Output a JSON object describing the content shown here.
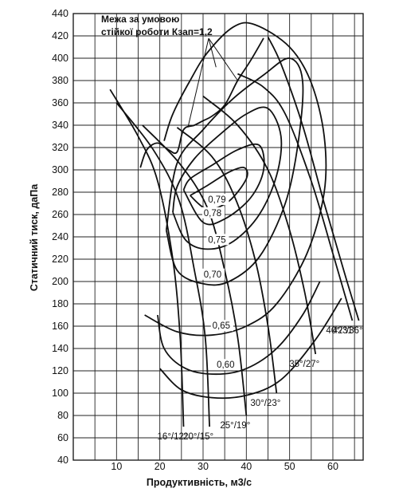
{
  "chart_data": {
    "type": "line",
    "xlabel": "Продуктивність, м3/с",
    "ylabel": "Статичний тиск, даПа",
    "xlim": [
      0,
      67
    ],
    "ylim": [
      40,
      440
    ],
    "x_ticks": [
      10,
      20,
      30,
      40,
      50,
      60
    ],
    "y_ticks": [
      40,
      60,
      80,
      100,
      120,
      140,
      160,
      180,
      200,
      220,
      240,
      260,
      280,
      300,
      320,
      340,
      360,
      380,
      400,
      420,
      440
    ],
    "grid": true,
    "annotation": {
      "lines": [
        "Межа за умовою",
        "стійкої роботи Кзап=1,2"
      ]
    },
    "blade_angle_curves": [
      {
        "name": "16°/12°",
        "points": [
          [
            8.5,
            372
          ],
          [
            15,
            330
          ],
          [
            19.5,
            290
          ],
          [
            23,
            220
          ],
          [
            24.7,
            150
          ],
          [
            25.5,
            70
          ]
        ]
      },
      {
        "name": "20°/15°",
        "points": [
          [
            10,
            360
          ],
          [
            18.5,
            318
          ],
          [
            24.5,
            272
          ],
          [
            28,
            210
          ],
          [
            30.5,
            150
          ],
          [
            31.5,
            70
          ]
        ]
      },
      {
        "name": "25°/19°",
        "points": [
          [
            16,
            340
          ],
          [
            24.5,
            306
          ],
          [
            31,
            266
          ],
          [
            35,
            210
          ],
          [
            38,
            150
          ],
          [
            40,
            80
          ]
        ]
      },
      {
        "name": "30°/23°",
        "points": [
          [
            24,
            338
          ],
          [
            32,
            312
          ],
          [
            37.5,
            274
          ],
          [
            42,
            220
          ],
          [
            45,
            160
          ],
          [
            47,
            100
          ]
        ]
      },
      {
        "name": "35°/27°",
        "points": [
          [
            30,
            366
          ],
          [
            38,
            340
          ],
          [
            45,
            300
          ],
          [
            50,
            246
          ],
          [
            53.5,
            190
          ],
          [
            56,
            135
          ]
        ]
      },
      {
        "name": "40°/31°",
        "points": [
          [
            38,
            386
          ],
          [
            44,
            374
          ],
          [
            49,
            350
          ],
          [
            55,
            290
          ],
          [
            60,
            225
          ],
          [
            64.5,
            165
          ]
        ]
      },
      {
        "name": "42°/36°",
        "points": [
          [
            45,
            419
          ],
          [
            48,
            395
          ],
          [
            53,
            340
          ],
          [
            58,
            270
          ],
          [
            62.5,
            210
          ],
          [
            66,
            165
          ]
        ]
      }
    ],
    "efficiency_curves": [
      {
        "label": "0,79",
        "points": [
          [
            27,
            277
          ],
          [
            31,
            265
          ],
          [
            36,
            272
          ],
          [
            40,
            292
          ],
          [
            39.5,
            302
          ],
          [
            36,
            298
          ],
          [
            31,
            286
          ],
          [
            27,
            277
          ]
        ]
      },
      {
        "label": "0,78",
        "points": [
          [
            25.5,
            282
          ],
          [
            30,
            253
          ],
          [
            35,
            256
          ],
          [
            41,
            275
          ],
          [
            44,
            300
          ],
          [
            43,
            322
          ],
          [
            38,
            318
          ],
          [
            32,
            304
          ],
          [
            27,
            292
          ],
          [
            25.5,
            282
          ]
        ]
      },
      {
        "label": "0,75",
        "points": [
          [
            23,
            262
          ],
          [
            26,
            237
          ],
          [
            31,
            229
          ],
          [
            37,
            236
          ],
          [
            43,
            260
          ],
          [
            47,
            295
          ],
          [
            48,
            330
          ],
          [
            45,
            355
          ],
          [
            40,
            350
          ],
          [
            34,
            332
          ],
          [
            28,
            310
          ],
          [
            24,
            285
          ],
          [
            23,
            262
          ]
        ]
      },
      {
        "label": "0,70",
        "points": [
          [
            21.5,
            246
          ],
          [
            24,
            210
          ],
          [
            30,
            198
          ],
          [
            36,
            200
          ],
          [
            43,
            222
          ],
          [
            49,
            270
          ],
          [
            52,
            325
          ],
          [
            53,
            380
          ],
          [
            50,
            400
          ],
          [
            44,
            385
          ],
          [
            37,
            364
          ],
          [
            30,
            336
          ],
          [
            24,
            306
          ],
          [
            21.5,
            246
          ]
        ]
      },
      {
        "label": "0,65",
        "points": [
          [
            16.5,
            170
          ],
          [
            24,
            155
          ],
          [
            32,
            152
          ],
          [
            40,
            160
          ],
          [
            47,
            180
          ],
          [
            54,
            225
          ],
          [
            58,
            280
          ],
          [
            58,
            330
          ],
          [
            55,
            378
          ],
          [
            50,
            410
          ],
          [
            42,
            430
          ],
          [
            37,
            428
          ],
          [
            31,
            405
          ],
          [
            27,
            380
          ],
          [
            23,
            350
          ],
          [
            21,
            326
          ]
        ]
      },
      {
        "label": "0,60",
        "points": [
          [
            19.5,
            170
          ],
          [
            21,
            140
          ],
          [
            26,
            122
          ],
          [
            33,
            117
          ],
          [
            40,
            122
          ],
          [
            47,
            140
          ],
          [
            53,
            170
          ],
          [
            57,
            200
          ]
        ]
      },
      {
        "label": "",
        "points": [
          [
            20,
            122
          ],
          [
            25,
            103
          ],
          [
            32,
            96
          ],
          [
            40,
            98
          ],
          [
            48,
            112
          ],
          [
            56,
            148
          ],
          [
            62,
            185
          ]
        ]
      }
    ],
    "stability_boundary": [
      [
        15.5,
        302
      ],
      [
        17,
        318
      ],
      [
        19.5,
        324
      ],
      [
        22,
        318
      ],
      [
        24,
        316
      ],
      [
        25.5,
        336
      ],
      [
        28,
        340
      ],
      [
        30,
        344
      ],
      [
        32,
        348
      ],
      [
        35,
        358
      ],
      [
        38,
        380
      ],
      [
        41,
        398
      ],
      [
        44,
        418
      ]
    ]
  }
}
